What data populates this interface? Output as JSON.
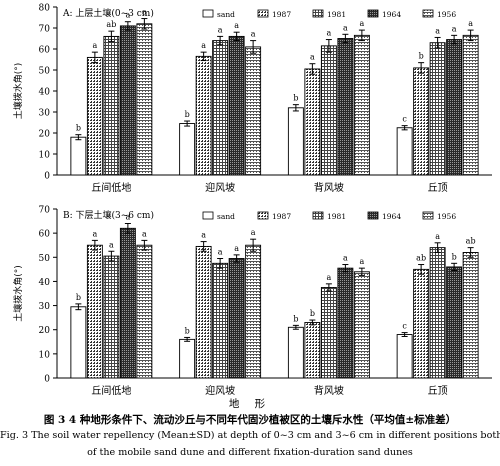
{
  "chart_data": [
    {
      "type": "bar",
      "panel_title": "A: 上层土壤(0~3 cm)",
      "ylabel": "土壤拨水角(°)",
      "ylim": [
        0,
        80
      ],
      "yticks": [
        0,
        10,
        20,
        30,
        40,
        50,
        60,
        70,
        80
      ],
      "categories": [
        "丘间低地",
        "迎风坡",
        "背风坡",
        "丘顶"
      ],
      "series": [
        {
          "name": "sand",
          "values": [
            18,
            24.5,
            32,
            22.5
          ],
          "errors": [
            1.2,
            1.2,
            1.5,
            1.0
          ],
          "letters": [
            "b",
            "b",
            "b",
            "c"
          ]
        },
        {
          "name": "1987",
          "values": [
            56,
            56.5,
            50.5,
            51
          ],
          "errors": [
            2.5,
            2.0,
            2.5,
            2.5
          ],
          "letters": [
            "a",
            "a",
            "a",
            "b"
          ]
        },
        {
          "name": "1981",
          "values": [
            66,
            64,
            61.5,
            63
          ],
          "errors": [
            2.5,
            2.0,
            3.0,
            2.5
          ],
          "letters": [
            "ab",
            "a",
            "a",
            "a"
          ]
        },
        {
          "name": "1964",
          "values": [
            71,
            66,
            65,
            64.5
          ],
          "errors": [
            2.0,
            2.0,
            2.0,
            2.0
          ],
          "letters": [
            "a",
            "a",
            "a",
            "a"
          ]
        },
        {
          "name": "1956",
          "values": [
            72,
            61,
            66.5,
            66.5
          ],
          "errors": [
            2.5,
            3.0,
            2.5,
            2.5
          ],
          "letters": [
            "a",
            "a",
            "a",
            "a"
          ]
        }
      ]
    },
    {
      "type": "bar",
      "panel_title": "B: 下层土壤(3~6 cm)",
      "ylabel": "土壤拨水角(°)",
      "ylim": [
        0,
        70
      ],
      "yticks": [
        0,
        10,
        20,
        30,
        40,
        50,
        60,
        70
      ],
      "categories": [
        "丘间低地",
        "迎风坡",
        "背风坡",
        "丘顶"
      ],
      "series": [
        {
          "name": "sand",
          "values": [
            29.5,
            16,
            21,
            18
          ],
          "errors": [
            1.2,
            0.8,
            0.8,
            0.8
          ],
          "letters": [
            "b",
            "b",
            "b",
            "c"
          ]
        },
        {
          "name": "1987",
          "values": [
            55,
            54.5,
            23,
            45
          ],
          "errors": [
            2.0,
            2.0,
            1.0,
            2.0
          ],
          "letters": [
            "a",
            "a",
            "b",
            "ab"
          ]
        },
        {
          "name": "1981",
          "values": [
            50.5,
            47.5,
            37.5,
            54
          ],
          "errors": [
            2.0,
            2.0,
            1.5,
            2.0
          ],
          "letters": [
            "a",
            "a",
            "a",
            "a"
          ]
        },
        {
          "name": "1964",
          "values": [
            62,
            49.5,
            45.5,
            46
          ],
          "errors": [
            2.0,
            1.5,
            1.5,
            1.5
          ],
          "letters": [
            "a",
            "a",
            "a",
            "b"
          ]
        },
        {
          "name": "1956",
          "values": [
            55,
            55,
            44,
            52
          ],
          "errors": [
            2.0,
            2.5,
            1.5,
            2.0
          ],
          "letters": [
            "a",
            "a",
            "a",
            "ab"
          ]
        }
      ]
    }
  ],
  "legend": {
    "placement": "top-right",
    "items": [
      "sand",
      "1987",
      "1981",
      "1964",
      "1956"
    ]
  },
  "xlabel": "地  形",
  "caption": {
    "zh": "图 3   4 种地形条件下、流动沙丘与不同年代固沙植被区的土壤斥水性（平均值±标准差）",
    "en_line1": "Fig. 3   The soil water repellency (Mean±SD) at depth of 0~3 cm and 3~6 cm in different positions both",
    "en_line2": "of the mobile sand dune and different fixation-duration sand dunes"
  }
}
